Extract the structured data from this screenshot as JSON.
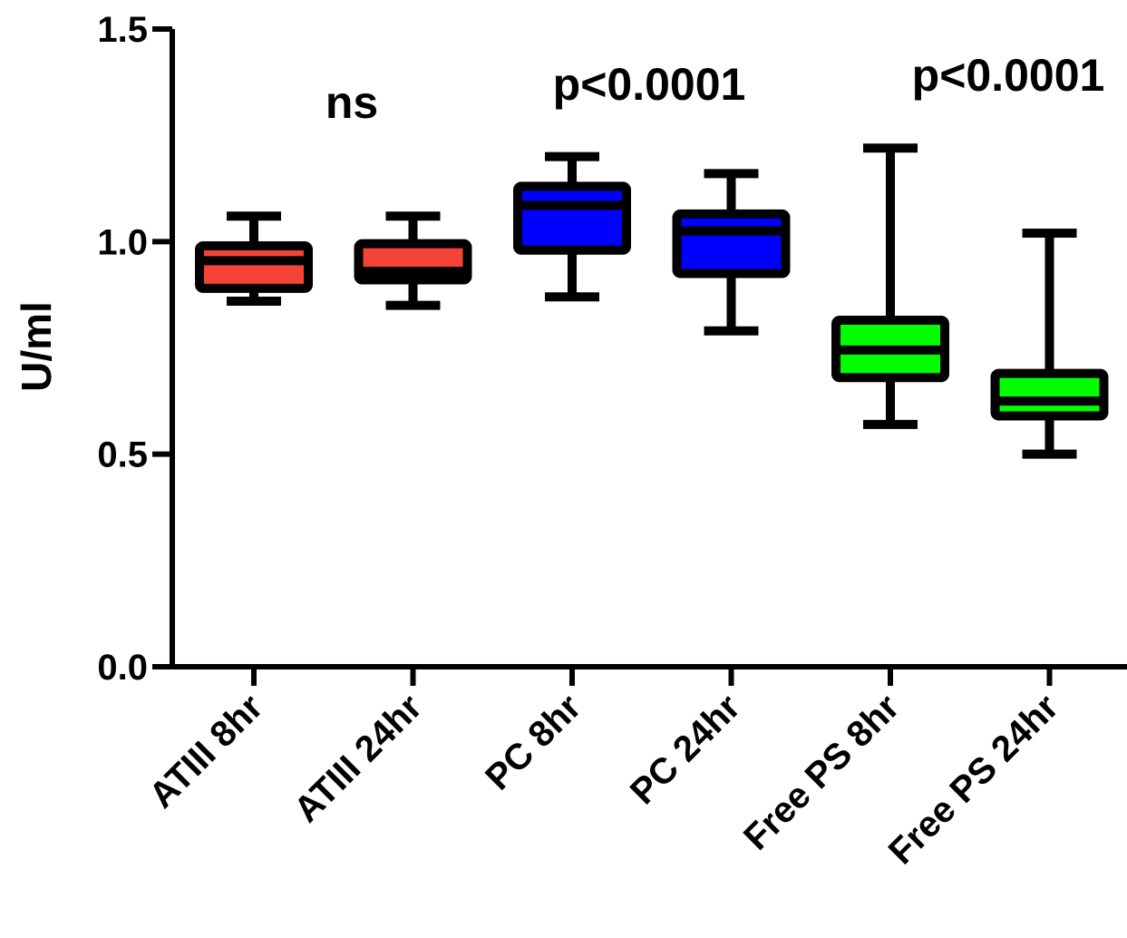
{
  "chart_data": {
    "type": "box",
    "title": "",
    "xlabel": "",
    "ylabel": "U/ml",
    "ylim": [
      0,
      1.5
    ],
    "yticks": [
      "0.0",
      "0.5",
      "1.0",
      "1.5"
    ],
    "grid": false,
    "legend": "none",
    "categories": [
      "ATIII 8hr",
      "ATIII 24hr",
      "PC 8hr",
      "PC 24hr",
      "Free PS 8hr",
      "Free PS 24hr"
    ],
    "boxes": [
      {
        "category": "ATIII 8hr",
        "min": 0.86,
        "q1": 0.89,
        "median": 0.955,
        "q3": 0.99,
        "max": 1.06,
        "color": "#f44336"
      },
      {
        "category": "ATIII 24hr",
        "min": 0.85,
        "q1": 0.91,
        "median": 0.93,
        "q3": 0.995,
        "max": 1.06,
        "color": "#f44336"
      },
      {
        "category": "PC 8hr",
        "min": 0.87,
        "q1": 0.98,
        "median": 1.085,
        "q3": 1.13,
        "max": 1.2,
        "color": "#0000ff"
      },
      {
        "category": "PC 24hr",
        "min": 0.79,
        "q1": 0.925,
        "median": 1.025,
        "q3": 1.065,
        "max": 1.16,
        "color": "#0000ff"
      },
      {
        "category": "Free PS 8hr",
        "min": 0.57,
        "q1": 0.68,
        "median": 0.745,
        "q3": 0.815,
        "max": 1.22,
        "color": "#00ff00"
      },
      {
        "category": "Free PS 24hr",
        "min": 0.5,
        "q1": 0.59,
        "median": 0.625,
        "q3": 0.69,
        "max": 1.02,
        "color": "#00ff00"
      }
    ],
    "annotations": [
      {
        "text": "ns",
        "group": "ATIII"
      },
      {
        "text": "p<0.0001",
        "group": "PC"
      },
      {
        "text": "p<0.0001",
        "group": "Free PS"
      }
    ]
  }
}
